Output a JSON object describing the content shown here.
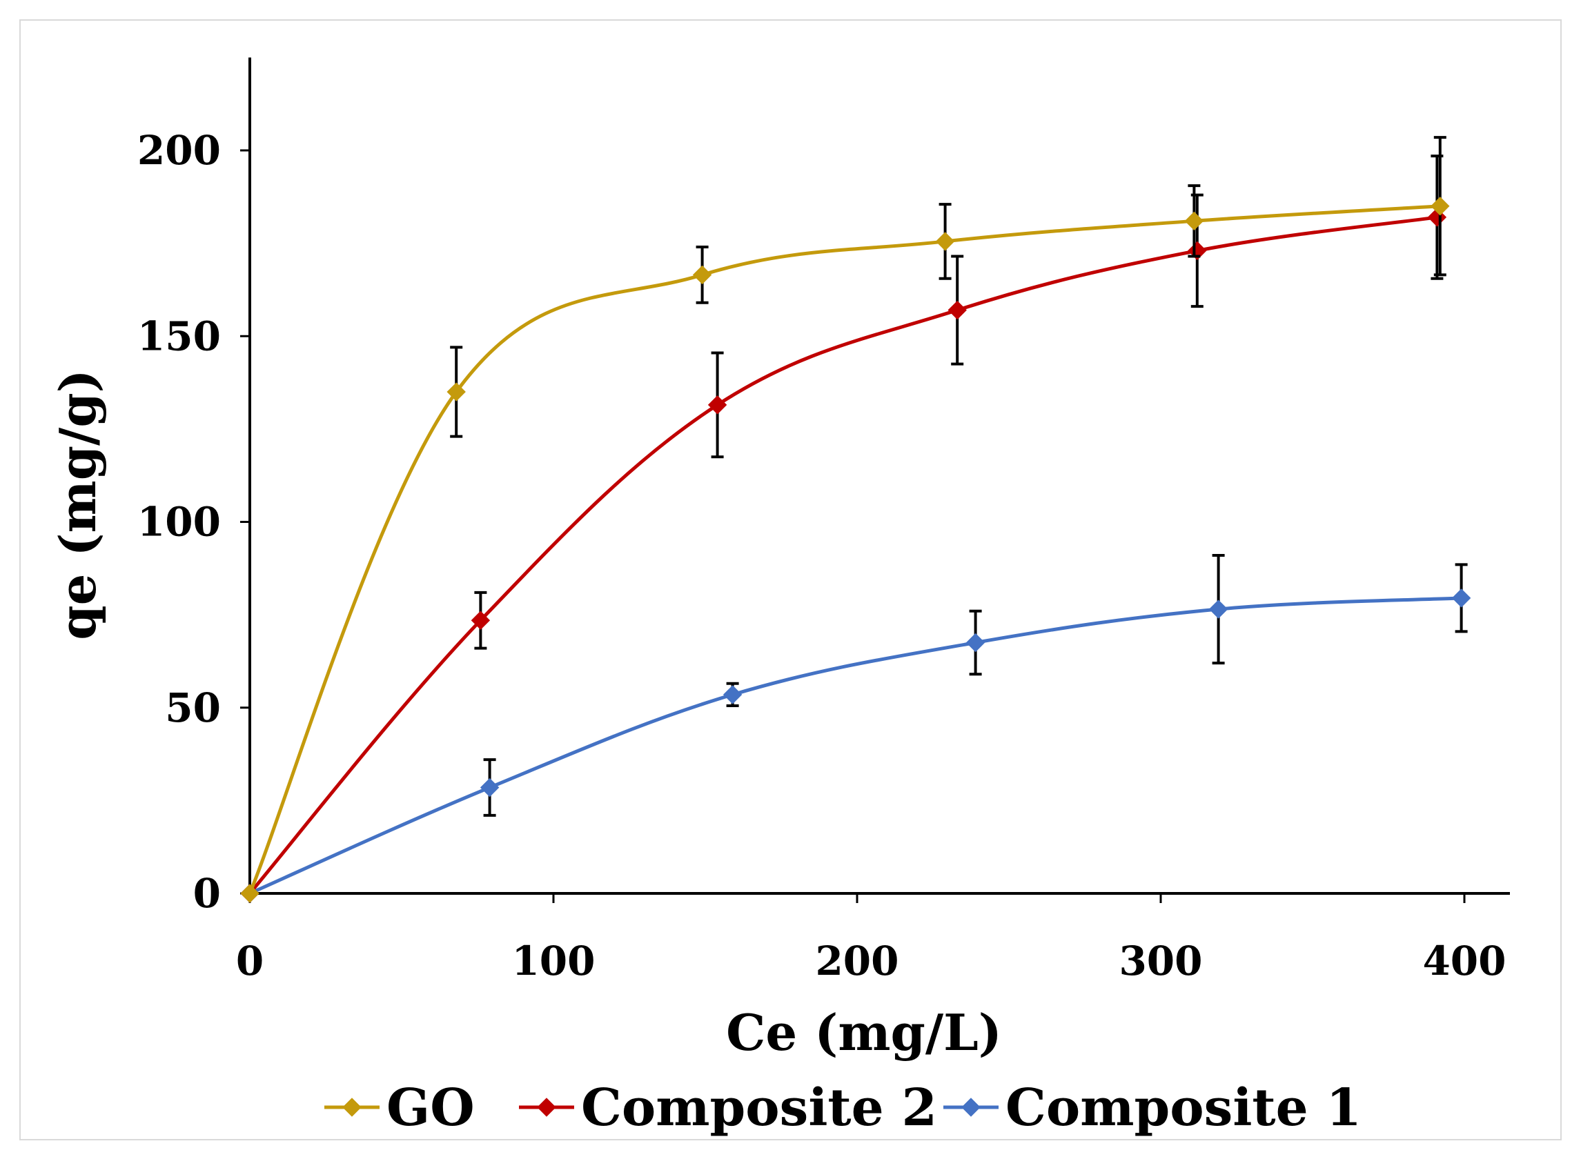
{
  "chart_data": {
    "type": "scatter",
    "title": "",
    "xlabel": "Ce (mg/L)",
    "ylabel": "qe (mg/g)",
    "xlim": [
      0,
      415
    ],
    "ylim": [
      0,
      225
    ],
    "xticks": [
      0,
      100,
      200,
      300,
      400
    ],
    "yticks": [
      0,
      50,
      100,
      150,
      200
    ],
    "grid": false,
    "legend_position": "bottom",
    "series": [
      {
        "name": "GO",
        "color": "#c49a0c",
        "x": [
          0,
          68,
          149,
          229,
          311,
          392
        ],
        "y": [
          0,
          135,
          166.5,
          175.5,
          181,
          185
        ],
        "err": [
          0,
          12,
          7.5,
          10,
          9.5,
          18.5
        ]
      },
      {
        "name": "Composite 2",
        "color": "#c00000",
        "x": [
          0,
          76,
          154,
          233,
          312,
          391
        ],
        "y": [
          0,
          73.5,
          131.5,
          157,
          173,
          182
        ],
        "err": [
          0,
          7.5,
          14,
          14.5,
          15,
          16.5
        ]
      },
      {
        "name": "Composite 1",
        "color": "#4472c4",
        "x": [
          0,
          79,
          159,
          239,
          319,
          399
        ],
        "y": [
          0,
          28.5,
          53.5,
          67.5,
          76.5,
          79.5
        ],
        "err": [
          0,
          7.5,
          3,
          8.5,
          14.5,
          9
        ]
      }
    ]
  }
}
